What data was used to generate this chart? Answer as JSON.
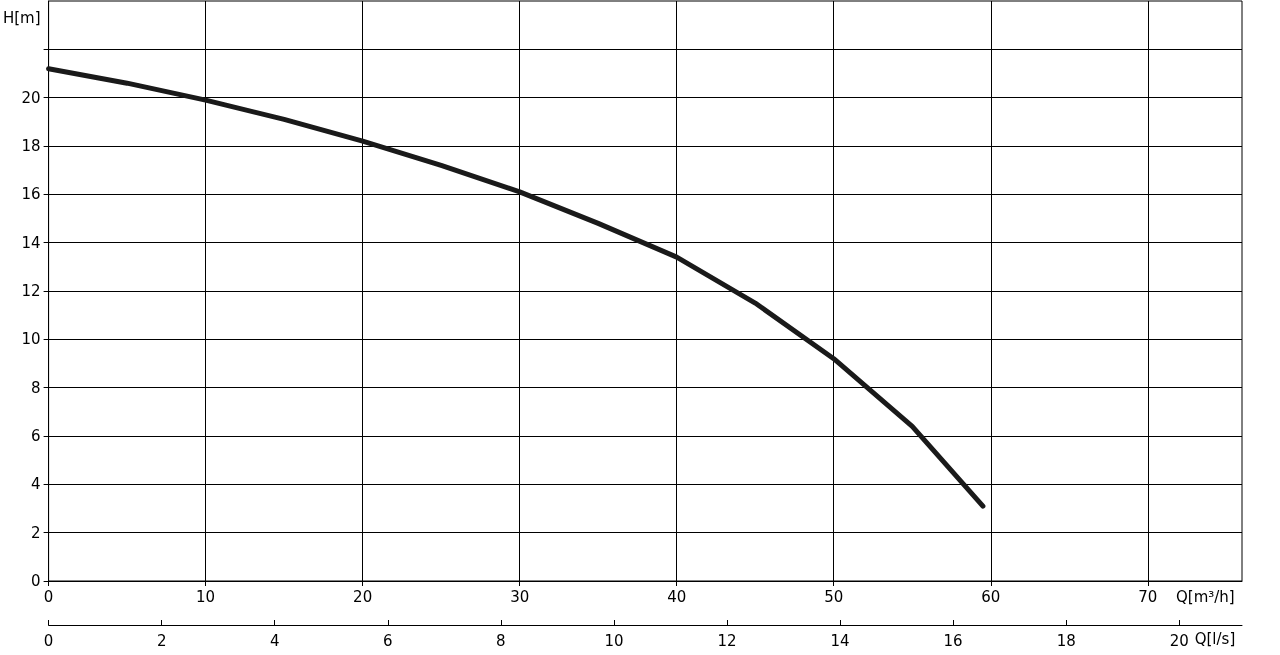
{
  "chart_data": {
    "type": "line",
    "xlabel": "Q[m³/h]",
    "ylabel": "H[m]",
    "x2label": "Q[l/s]",
    "x": [
      0,
      5,
      10,
      15,
      20,
      25,
      30,
      35,
      40,
      45,
      50,
      55,
      59.5
    ],
    "series": [
      {
        "color": "#1a1a1a",
        "values": [
          21.2,
          20.6,
          19.9,
          19.1,
          18.2,
          17.2,
          16.1,
          14.8,
          13.4,
          11.5,
          9.2,
          6.4,
          3.1
        ]
      }
    ],
    "xlim": [
      0,
      76
    ],
    "xticks": [
      0,
      10,
      20,
      30,
      40,
      50,
      60,
      70
    ],
    "x2lim": [
      0,
      21.11
    ],
    "x2ticks": [
      0,
      2,
      4,
      6,
      8,
      10,
      12,
      14,
      16,
      18,
      20
    ],
    "ylim": [
      0,
      24
    ],
    "yticks": [
      0,
      2,
      4,
      6,
      8,
      10,
      12,
      14,
      16,
      18,
      20,
      {
        "value": 22,
        "label": null
      }
    ],
    "grid": true,
    "marker": "none",
    "line_style": "solid"
  }
}
